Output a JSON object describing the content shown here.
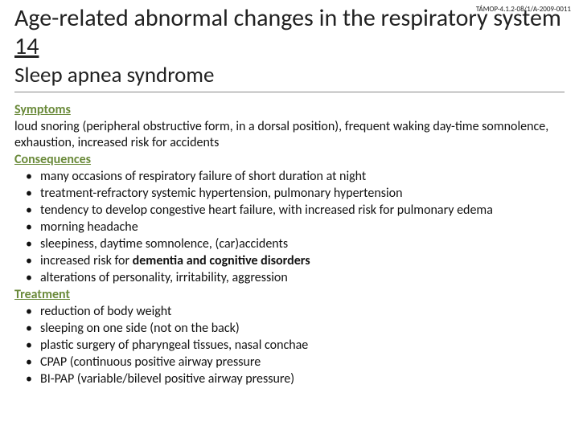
{
  "docref": "TÁMOP-4.1.2-08/1/A-2009-0011",
  "title": {
    "main": "Age-related abnormal changes in the respiratory system ",
    "number": "14"
  },
  "subtitle": "Sleep apnea syndrome",
  "colors": {
    "background": "#ffffff",
    "text": "#111111",
    "accent": "#6a8a3a",
    "rule": "#888888"
  },
  "typography": {
    "title_fontsize_pt": 22,
    "subtitle_fontsize_pt": 20,
    "body_fontsize_pt": 12,
    "font_family": "Calibri"
  },
  "sections": [
    {
      "label": "Symptoms",
      "text": "loud snoring (peripheral obstructive form, in a dorsal position), frequent  waking day-time somnolence, exhaustion, increased risk for accidents"
    },
    {
      "label": "Consequences",
      "items": [
        "many occasions of respiratory failure of short duration  at night",
        "treatment-refractory systemic hypertension, pulmonary hypertension",
        "tendency to develop congestive heart failure, with  increased risk for pulmonary edema",
        "morning headache",
        "sleepiness, daytime somnolence, (car)accidents",
        {
          "prefix": "increased risk for ",
          "bold": "dementia and cognitive disorders"
        },
        "alterations of  personality, irritability, aggression"
      ]
    },
    {
      "label": "Treatment",
      "items": [
        "reduction of body weight",
        "sleeping on one side (not on the back)",
        "plastic surgery of pharyngeal tissues, nasal conchae",
        "CPAP (continuous positive airway pressure",
        "BI-PAP (variable/bilevel positive airway pressure)"
      ]
    }
  ]
}
